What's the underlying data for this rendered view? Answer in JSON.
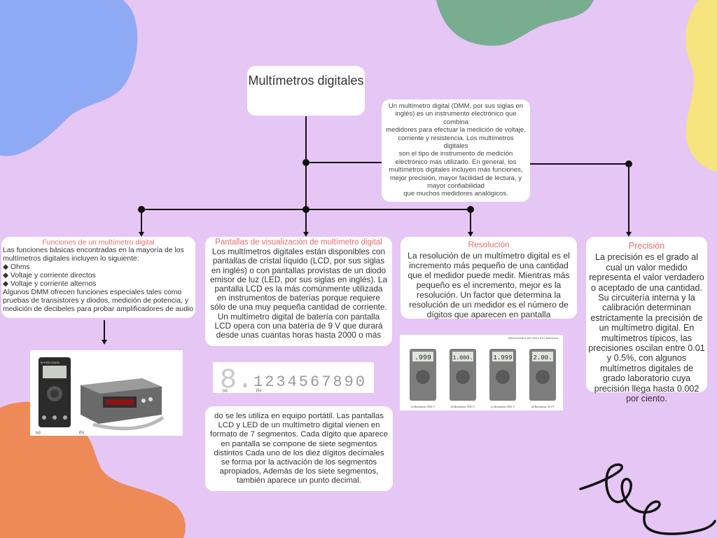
{
  "title": "Multímetros digitales",
  "definition": [
    "Un multímetro digital (DMM, por sus siglas en inglés) es un instrumento electrónico que combina",
    "medidores para efectuar la medición de voltaje, corriente y resistencia. Los multímetros digitales",
    "son el tipo de instrumento de medición electrónico más utilizado. En general, los multímetros digitales incluyen más funciones, mejor precisión, mayor facilidad de lectura, y mayor confiabilidad",
    "que muchos medidores analógicos."
  ],
  "functions": {
    "title": "Funciones de un multímetro digital",
    "intro": "Las funciones básicas encontradas en la mayoría de los multímetros digitales incluyen lo siguiente:",
    "items": [
      "◆ Ohms",
      "◆ Voltaje y corriente directos",
      "◆ Voltaje y corriente alternos"
    ],
    "extra": "Algunos DMM ofrecen funciones especiales tales como pruebas de transistores y diodos, medición de potencia, y medición de decibeles para probar amplificadores de audio"
  },
  "display": {
    "title": "Pantallas de visualización de multímetro digital",
    "text": "Los multímetros digitales están disponibles con pantallas de cristal líquido (LCD, por sus siglas en inglés) o con pantallas provistas de un diodo emisor de luz (LED, por sus siglas en inglés). La pantalla LCD es la más comúnmente utilizada en instrumentos de baterías porque requiere sólo de una muy pequeña cantidad de corriente. Un multímetro digital de batería con pantalla LCD opera con una batería de 9 V que durará desde unas cuantas horas hasta 2000 o más",
    "continued": "do se les utiliza en equipo portátil. Las pantallas LCD y LED de un multímetro digital vienen en formato de 7 segmentos. Cada dígito que aparece en pantalla se compone de siete segmentos distintos Cada uno de los diez dígitos decimales se forma por la activación de los segmentos apropiados, Además de los siete segmentos, también aparece un punto decimal."
  },
  "resolution": {
    "title": "Resolución",
    "text": "La resolución de un multímetro digital es el incremento más pequeño de una cantidad que el medidor puede medir. Mientras más pequeño es el incremento, mejor es la resolución. Un factor que determina la resolución de un medidor es el número de dígitos que aparecen en pantalla"
  },
  "precision": {
    "title": "Precisión",
    "text": "La precisión es el grado al cual un valor medido representa el valor verdadero o aceptado de una cantidad. Su circuitería interna y la calibración determinan estrictamente la precisión de un multímetro digital. En multímetros típicos, las precisiones oscilan entre 0.01 y 0.5%, con algunos multímetros digitales de grado laboratorio cuya precisión llega hasta 0.002 por ciento."
  },
  "images": {
    "segments": {
      "big_digit": "8.",
      "digits": "1234567890",
      "label_a": "(a)",
      "label_b": "(b)"
    },
    "multimeters": {
      "label_a": "(a)",
      "label_b": "(b)",
      "brand": "B+PRECISION"
    },
    "meters": {
      "header": "MEDICIONES DE CIRCUITO BÁSICAS",
      "readings": [
        ".999",
        "1.000.",
        "1.999",
        "2.00."
      ],
      "captions": [
        "(a) Resolución: 0.001 V",
        "(b) Resolución: 0.001 V",
        "(c) Resolución: 0.001 V",
        "(d) Resolución: 0.01 V"
      ]
    }
  },
  "colors": {
    "background": "#e6c6f5",
    "card": "#ffffff",
    "heading_accent": "#e96b6b",
    "blob_blue": "#8eaaf5",
    "blob_green": "#79ad8f",
    "blob_yellow": "#f6e47e",
    "blob_orange": "#ee8a57",
    "connector": "#111111"
  }
}
